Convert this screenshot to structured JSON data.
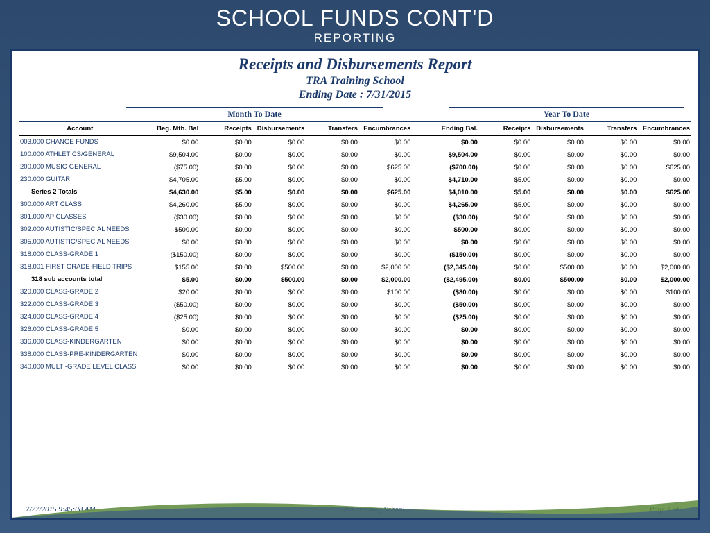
{
  "slide": {
    "title": "SCHOOL FUNDS CONT'D",
    "subtitle": "REPORTING"
  },
  "report": {
    "title": "Receipts and Disbursements Report",
    "school": "TRA Training School",
    "ending_date_label": "Ending Date :  7/31/2015",
    "group_labels": {
      "mtd": "Month To Date",
      "ytd": "Year To Date"
    },
    "columns": [
      "Account",
      "Beg. Mth. Bal",
      "Receipts",
      "Disbursements",
      "Transfers",
      "Encumbrances",
      "Ending Bal.",
      "Receipts",
      "Disbursements",
      "Transfers",
      "Encumbrances"
    ],
    "footer": {
      "timestamp": "7/27/2015 9:45:08 AM",
      "center": "TRA Training School",
      "page": "Page 1 of 5"
    },
    "colors": {
      "header_bg": "#2d4a6e",
      "accent": "#1b3a6b",
      "text": "#000000",
      "paper": "#ffffff",
      "swoosh1": "#5a8a3a",
      "swoosh2": "#3a5a82"
    }
  },
  "rows": [
    {
      "acct": "003.000 CHANGE FUNDS",
      "v": [
        "$0.00",
        "$0.00",
        "$0.00",
        "$0.00",
        "$0.00",
        "$0.00",
        "$0.00",
        "$0.00",
        "$0.00",
        "$0.00"
      ]
    },
    {
      "acct": "100.000 ATHLETICS/GENERAL",
      "v": [
        "$9,504.00",
        "$0.00",
        "$0.00",
        "$0.00",
        "$0.00",
        "$9,504.00",
        "$0.00",
        "$0.00",
        "$0.00",
        "$0.00"
      ]
    },
    {
      "acct": "200.000 MUSIC-GENERAL",
      "v": [
        "($75.00)",
        "$0.00",
        "$0.00",
        "$0.00",
        "$625.00",
        "($700.00)",
        "$0.00",
        "$0.00",
        "$0.00",
        "$625.00"
      ]
    },
    {
      "acct": "230.000 GUITAR",
      "v": [
        "$4,705.00",
        "$5.00",
        "$0.00",
        "$0.00",
        "$0.00",
        "$4,710.00",
        "$5.00",
        "$0.00",
        "$0.00",
        "$0.00"
      ]
    },
    {
      "acct": "Series 2 Totals",
      "v": [
        "$4,630.00",
        "$5.00",
        "$0.00",
        "$0.00",
        "$625.00",
        "$4,010.00",
        "$5.00",
        "$0.00",
        "$0.00",
        "$625.00"
      ],
      "totals": true
    },
    {
      "acct": "300.000 ART CLASS",
      "v": [
        "$4,260.00",
        "$5.00",
        "$0.00",
        "$0.00",
        "$0.00",
        "$4,265.00",
        "$5.00",
        "$0.00",
        "$0.00",
        "$0.00"
      ]
    },
    {
      "acct": "301.000 AP CLASSES",
      "v": [
        "($30.00)",
        "$0.00",
        "$0.00",
        "$0.00",
        "$0.00",
        "($30.00)",
        "$0.00",
        "$0.00",
        "$0.00",
        "$0.00"
      ]
    },
    {
      "acct": "302.000 AUTISTIC/SPECIAL NEEDS",
      "v": [
        "$500.00",
        "$0.00",
        "$0.00",
        "$0.00",
        "$0.00",
        "$500.00",
        "$0.00",
        "$0.00",
        "$0.00",
        "$0.00"
      ]
    },
    {
      "acct": "305.000 AUTISTIC/SPECIAL NEEDS",
      "v": [
        "$0.00",
        "$0.00",
        "$0.00",
        "$0.00",
        "$0.00",
        "$0.00",
        "$0.00",
        "$0.00",
        "$0.00",
        "$0.00"
      ]
    },
    {
      "acct": "318.000 CLASS-GRADE 1",
      "v": [
        "($150.00)",
        "$0.00",
        "$0.00",
        "$0.00",
        "$0.00",
        "($150.00)",
        "$0.00",
        "$0.00",
        "$0.00",
        "$0.00"
      ]
    },
    {
      "acct": "318.001 FIRST GRADE-FIELD TRIPS",
      "v": [
        "$155.00",
        "$0.00",
        "$500.00",
        "$0.00",
        "$2,000.00",
        "($2,345.00)",
        "$0.00",
        "$500.00",
        "$0.00",
        "$2,000.00"
      ]
    },
    {
      "acct": "318 sub accounts total",
      "v": [
        "$5.00",
        "$0.00",
        "$500.00",
        "$0.00",
        "$2,000.00",
        "($2,495.00)",
        "$0.00",
        "$500.00",
        "$0.00",
        "$2,000.00"
      ],
      "totals": true
    },
    {
      "acct": "320.000 CLASS-GRADE 2",
      "v": [
        "$20.00",
        "$0.00",
        "$0.00",
        "$0.00",
        "$100.00",
        "($80.00)",
        "$0.00",
        "$0.00",
        "$0.00",
        "$100.00"
      ]
    },
    {
      "acct": "322.000 CLASS-GRADE 3",
      "v": [
        "($50.00)",
        "$0.00",
        "$0.00",
        "$0.00",
        "$0.00",
        "($50.00)",
        "$0.00",
        "$0.00",
        "$0.00",
        "$0.00"
      ]
    },
    {
      "acct": "324.000 CLASS-GRADE 4",
      "v": [
        "($25.00)",
        "$0.00",
        "$0.00",
        "$0.00",
        "$0.00",
        "($25.00)",
        "$0.00",
        "$0.00",
        "$0.00",
        "$0.00"
      ]
    },
    {
      "acct": "326.000 CLASS-GRADE 5",
      "v": [
        "$0.00",
        "$0.00",
        "$0.00",
        "$0.00",
        "$0.00",
        "$0.00",
        "$0.00",
        "$0.00",
        "$0.00",
        "$0.00"
      ]
    },
    {
      "acct": "336.000 CLASS-KINDERGARTEN",
      "v": [
        "$0.00",
        "$0.00",
        "$0.00",
        "$0.00",
        "$0.00",
        "$0.00",
        "$0.00",
        "$0.00",
        "$0.00",
        "$0.00"
      ]
    },
    {
      "acct": "338.000 CLASS-PRE-KINDERGARTEN",
      "v": [
        "$0.00",
        "$0.00",
        "$0.00",
        "$0.00",
        "$0.00",
        "$0.00",
        "$0.00",
        "$0.00",
        "$0.00",
        "$0.00"
      ]
    },
    {
      "acct": "340.000 MULTI-GRADE LEVEL CLASS",
      "v": [
        "$0.00",
        "$0.00",
        "$0.00",
        "$0.00",
        "$0.00",
        "$0.00",
        "$0.00",
        "$0.00",
        "$0.00",
        "$0.00"
      ]
    }
  ]
}
